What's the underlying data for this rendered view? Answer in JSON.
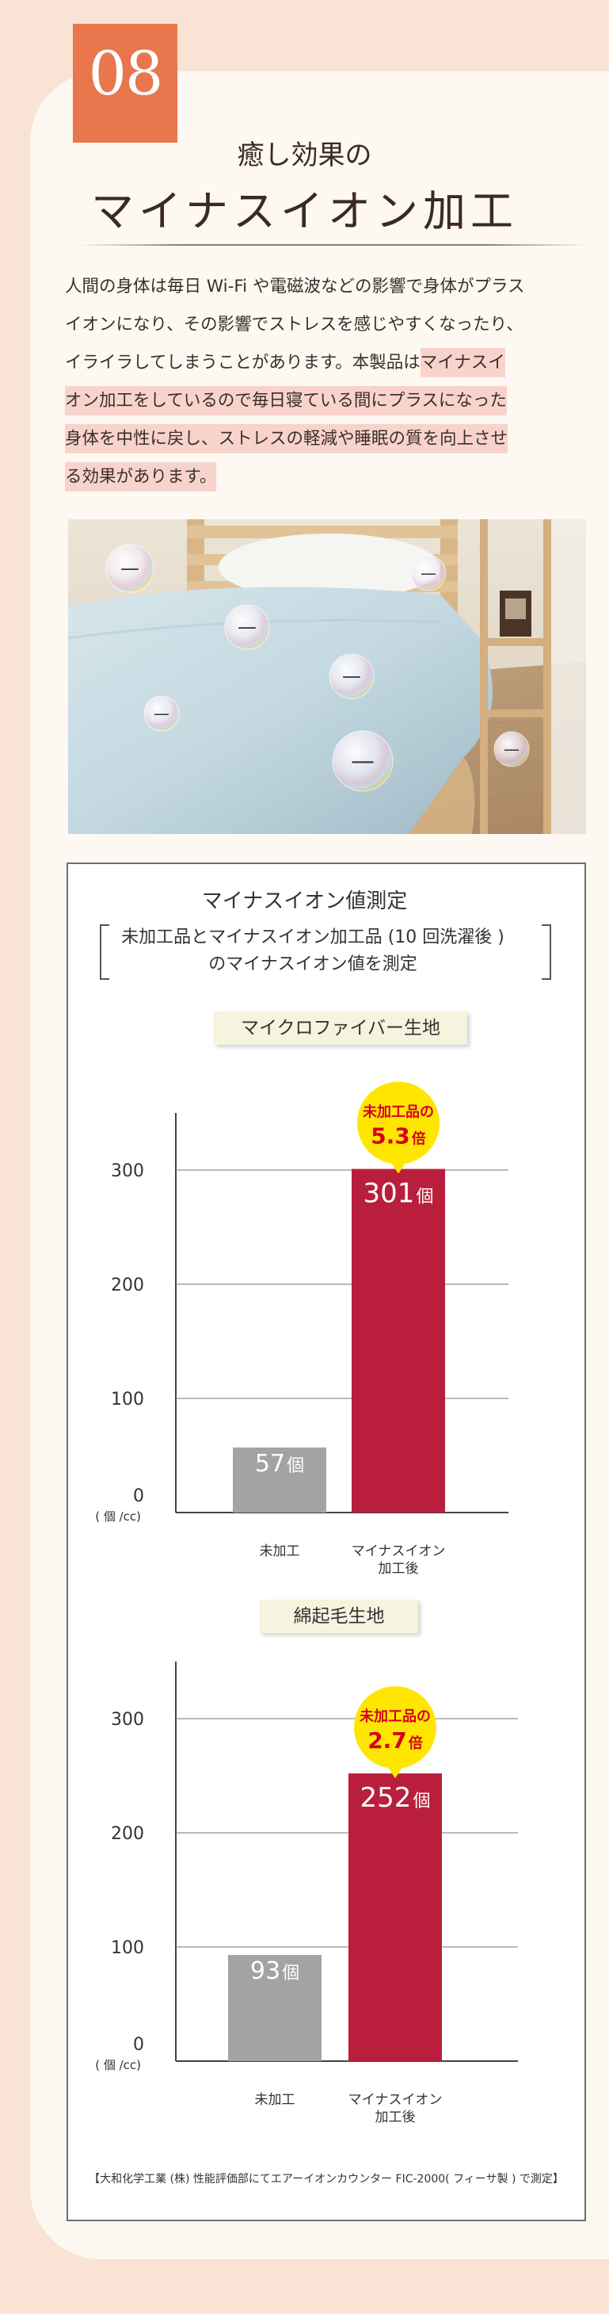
{
  "section_number": "08",
  "subtitle": "癒し効果の",
  "title": "マイナスイオン加工",
  "body": {
    "line1": "人間の身体は毎日 Wi-Fi や電磁波などの影響で身体がプラス",
    "line2": "イオンになり、その影響でストレスを感じやすくなったり、",
    "line3a": "イライラしてしまうことがあります。本製品は",
    "line3b": "マイナスイ",
    "line4": "オン加工をしているので毎日寝ている間にプラスになった",
    "line5": "身体を中性に戻し、ストレスの軽減や睡眠の質を向上させ",
    "line6": "る効果があります。"
  },
  "photo": {
    "ion_symbol": "—"
  },
  "measurement": {
    "title": "マイナスイオン値測定",
    "desc_line1": "未加工品とマイナスイオン加工品 (10 回洗濯後 )",
    "desc_line2": "のマイナスイオン値を測定",
    "footnote": "【大和化学工業 (株) 性能評価部にてエアーイオンカウンター FIC-2000( フィーサ製 ) で測定】"
  },
  "colors": {
    "badge": "#e9764d",
    "untreated_bar": "#a3a3a3",
    "treated_bar": "#b91f3c",
    "callout": "#ffe600",
    "callout_text": "#d6001c"
  },
  "chart_data": [
    {
      "type": "bar",
      "title": "マイクロファイバー生地",
      "categories": [
        "未加工",
        "マイナスイオン加工後"
      ],
      "category_lines": [
        [
          "未加工"
        ],
        [
          "マイナスイオン",
          "加工後"
        ]
      ],
      "values": [
        57,
        301
      ],
      "value_labels": [
        "57",
        "301"
      ],
      "unit_suffix": "個",
      "ylabel": "( 個 /cc)",
      "ylim": [
        0,
        350
      ],
      "yticks": [
        0,
        100,
        200,
        300
      ],
      "grid": true,
      "callout_line1": "未加工品の",
      "callout_value": "5.3",
      "callout_suffix": "倍"
    },
    {
      "type": "bar",
      "title": "綿起毛生地",
      "categories": [
        "未加工",
        "マイナスイオン加工後"
      ],
      "category_lines": [
        [
          "未加工"
        ],
        [
          "マイナスイオン",
          "加工後"
        ]
      ],
      "values": [
        93,
        252
      ],
      "value_labels": [
        "93",
        "252"
      ],
      "unit_suffix": "個",
      "ylabel": "( 個 /cc)",
      "ylim": [
        0,
        350
      ],
      "yticks": [
        0,
        100,
        200,
        300
      ],
      "grid": true,
      "callout_line1": "未加工品の",
      "callout_value": "2.7",
      "callout_suffix": "倍"
    }
  ]
}
